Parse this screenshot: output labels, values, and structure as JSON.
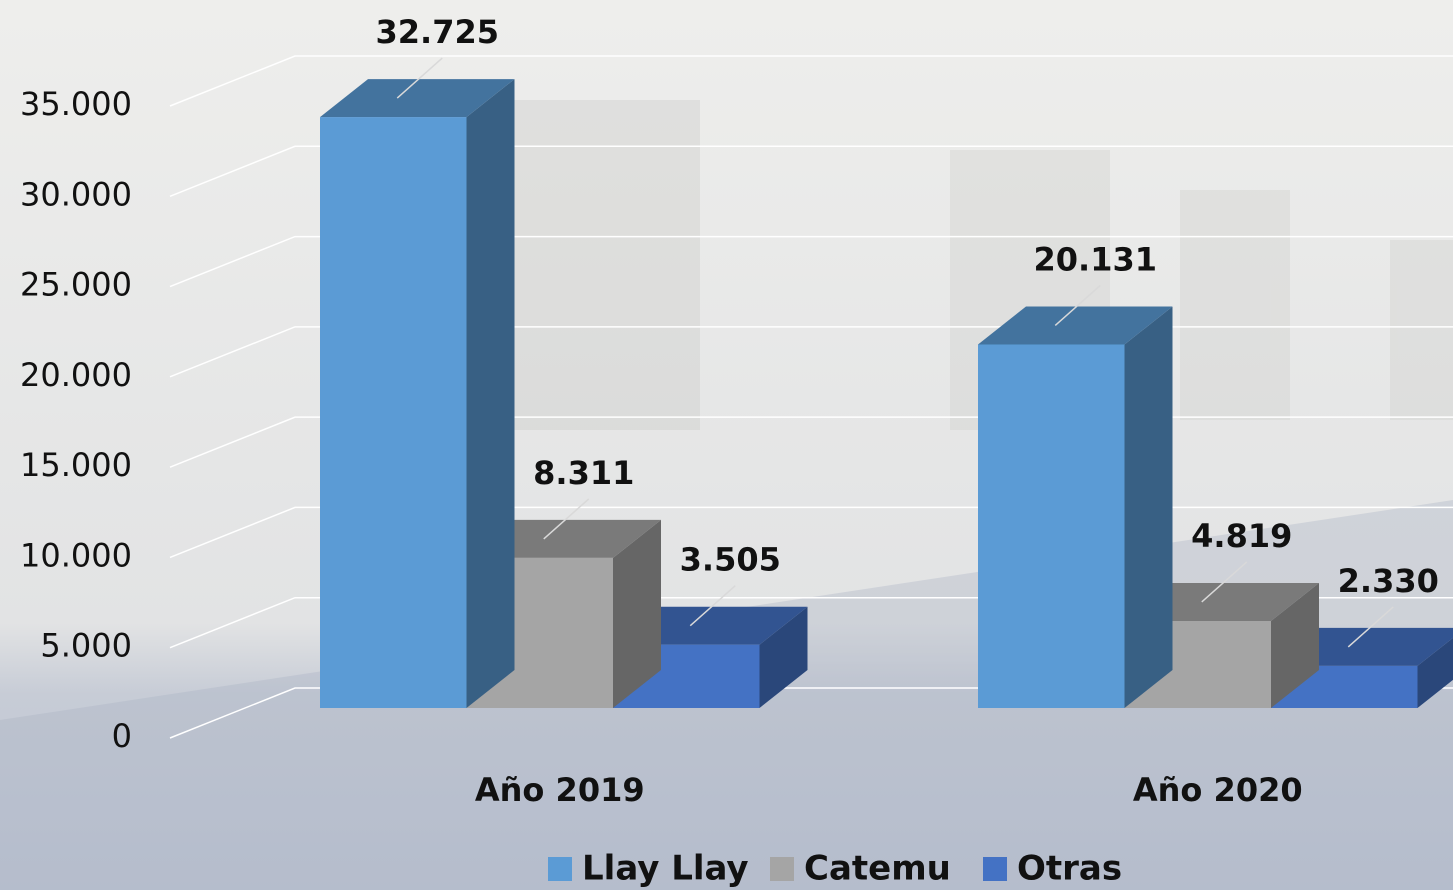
{
  "chart_data": {
    "type": "bar3d",
    "categories": [
      "Año 2019",
      "Año 2020"
    ],
    "series": [
      {
        "name": "Llay Llay",
        "color": "#5b9bd5",
        "values": [
          32725,
          20131
        ],
        "value_labels": [
          "32.725",
          "20.131"
        ]
      },
      {
        "name": "Catemu",
        "color": "#a5a5a5",
        "values": [
          8311,
          4819
        ],
        "value_labels": [
          "8.311",
          "4.819"
        ]
      },
      {
        "name": "Otras",
        "color": "#4472c4",
        "values": [
          3505,
          2330
        ],
        "value_labels": [
          "3.505",
          "2.330"
        ]
      }
    ],
    "ylim": [
      0,
      35000
    ],
    "yticks": [
      0,
      {
        "value": 5000,
        "label": "5.000"
      },
      {
        "value": 10000,
        "label": "10.000"
      },
      {
        "value": 15000,
        "label": "15.000"
      },
      {
        "value": 20000,
        "label": "20.000"
      },
      {
        "value": 25000,
        "label": "25.000"
      },
      {
        "value": 30000,
        "label": "30.000"
      },
      {
        "value": 35000,
        "label": "35.000"
      }
    ],
    "grid": true,
    "legend": "bottom"
  }
}
